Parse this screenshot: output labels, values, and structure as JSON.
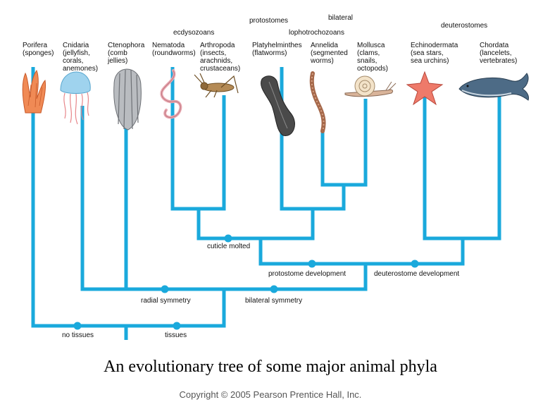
{
  "caption": "An evolutionary tree of some major animal phyla",
  "copyright": "Copyright © 2005 Pearson Prentice Hall, Inc.",
  "groups": {
    "protostomes": "protostomes",
    "bilateral": "bilateral",
    "ecdysozoans": "ecdysozoans",
    "lophotrochozoans": "lophotrochozoans",
    "deuterostomes": "deuterostomes"
  },
  "phyla": [
    {
      "id": "porifera",
      "lines": [
        "Porifera",
        "(sponges)"
      ]
    },
    {
      "id": "cnidaria",
      "lines": [
        "Cnidaria",
        "(jellyfish,",
        "corals,",
        "anemones)"
      ]
    },
    {
      "id": "ctenophora",
      "lines": [
        "Ctenophora",
        "(comb",
        "jellies)"
      ]
    },
    {
      "id": "nematoda",
      "lines": [
        "Nematoda",
        "(roundworms)"
      ]
    },
    {
      "id": "arthropoda",
      "lines": [
        "Arthropoda",
        "(insects,",
        "arachnids,",
        "crustaceans)"
      ]
    },
    {
      "id": "platyhelminthes",
      "lines": [
        "Platyhelminthes",
        "(flatworms)"
      ]
    },
    {
      "id": "annelida",
      "lines": [
        "Annelida",
        "(segmented",
        "worms)"
      ]
    },
    {
      "id": "mollusca",
      "lines": [
        "Mollusca",
        "(clams,",
        "snails,",
        "octopods)"
      ]
    },
    {
      "id": "echinodermata",
      "lines": [
        "Echinodermata",
        "(sea stars,",
        "sea urchins)"
      ]
    },
    {
      "id": "chordata",
      "lines": [
        "Chordata",
        "(lancelets,",
        "vertebrates)"
      ]
    }
  ],
  "traits": {
    "no_tissues": "no tissues",
    "tissues": "tissues",
    "radial_symmetry": "radial symmetry",
    "bilateral_symmetry": "bilateral symmetry",
    "cuticle_molted": "cuticle molted",
    "protostome_development": "protostome development",
    "deuterostome_development": "deuterostome development"
  },
  "colors": {
    "branch": "#1aa9dc"
  }
}
